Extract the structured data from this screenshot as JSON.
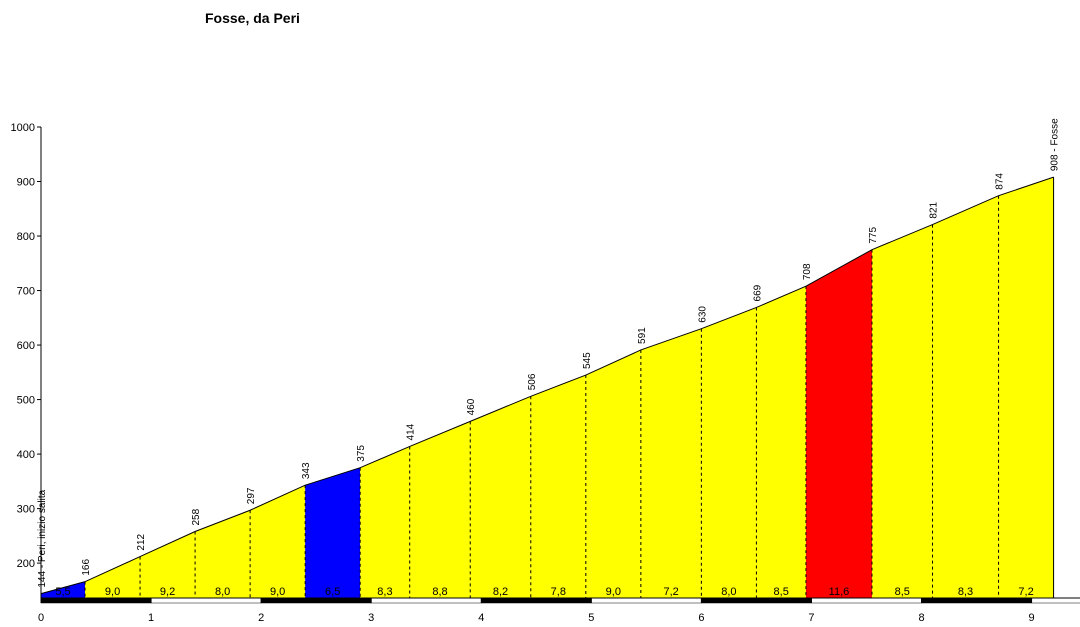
{
  "chart_data": {
    "type": "area",
    "title": "Fosse, da Peri",
    "x": [
      0,
      0.4,
      0.9,
      1.4,
      1.9,
      2.4,
      2.9,
      3.35,
      3.9,
      4.45,
      4.95,
      5.45,
      6.0,
      6.5,
      6.95,
      7.55,
      8.1,
      8.7,
      9.2
    ],
    "values": [
      144,
      166,
      212,
      258,
      297,
      343,
      375,
      414,
      460,
      506,
      545,
      591,
      630,
      669,
      708,
      775,
      821,
      874,
      908
    ],
    "value_labels": [
      "144 - Peri, inizio salita",
      "166",
      "212",
      "258",
      "297",
      "343",
      "375",
      "414",
      "460",
      "506",
      "545",
      "591",
      "630",
      "669",
      "708",
      "775",
      "821",
      "874",
      "908 - Fosse"
    ],
    "segment_labels": [
      "5,5",
      "9,0",
      "9,2",
      "8,0",
      "9,0",
      "6,5",
      "8,3",
      "8,8",
      "8,2",
      "7,8",
      "9,0",
      "7,2",
      "8,0",
      "8,5",
      "11,6",
      "8,5",
      "8,3",
      "7,2"
    ],
    "segment_colors": [
      "#0000ff",
      "#ffff00",
      "#ffff00",
      "#ffff00",
      "#ffff00",
      "#0000ff",
      "#ffff00",
      "#ffff00",
      "#ffff00",
      "#ffff00",
      "#ffff00",
      "#ffff00",
      "#ffff00",
      "#ffff00",
      "#ff0000",
      "#ffff00",
      "#ffff00",
      "#ffff00"
    ],
    "xlim": [
      0,
      9.44
    ],
    "xticks": [
      0,
      1,
      2,
      3,
      4,
      5,
      6,
      7,
      8,
      9
    ],
    "ylim": [
      136,
      1000
    ],
    "yticks": [
      200,
      300,
      400,
      500,
      600,
      700,
      800,
      900,
      1000
    ]
  }
}
